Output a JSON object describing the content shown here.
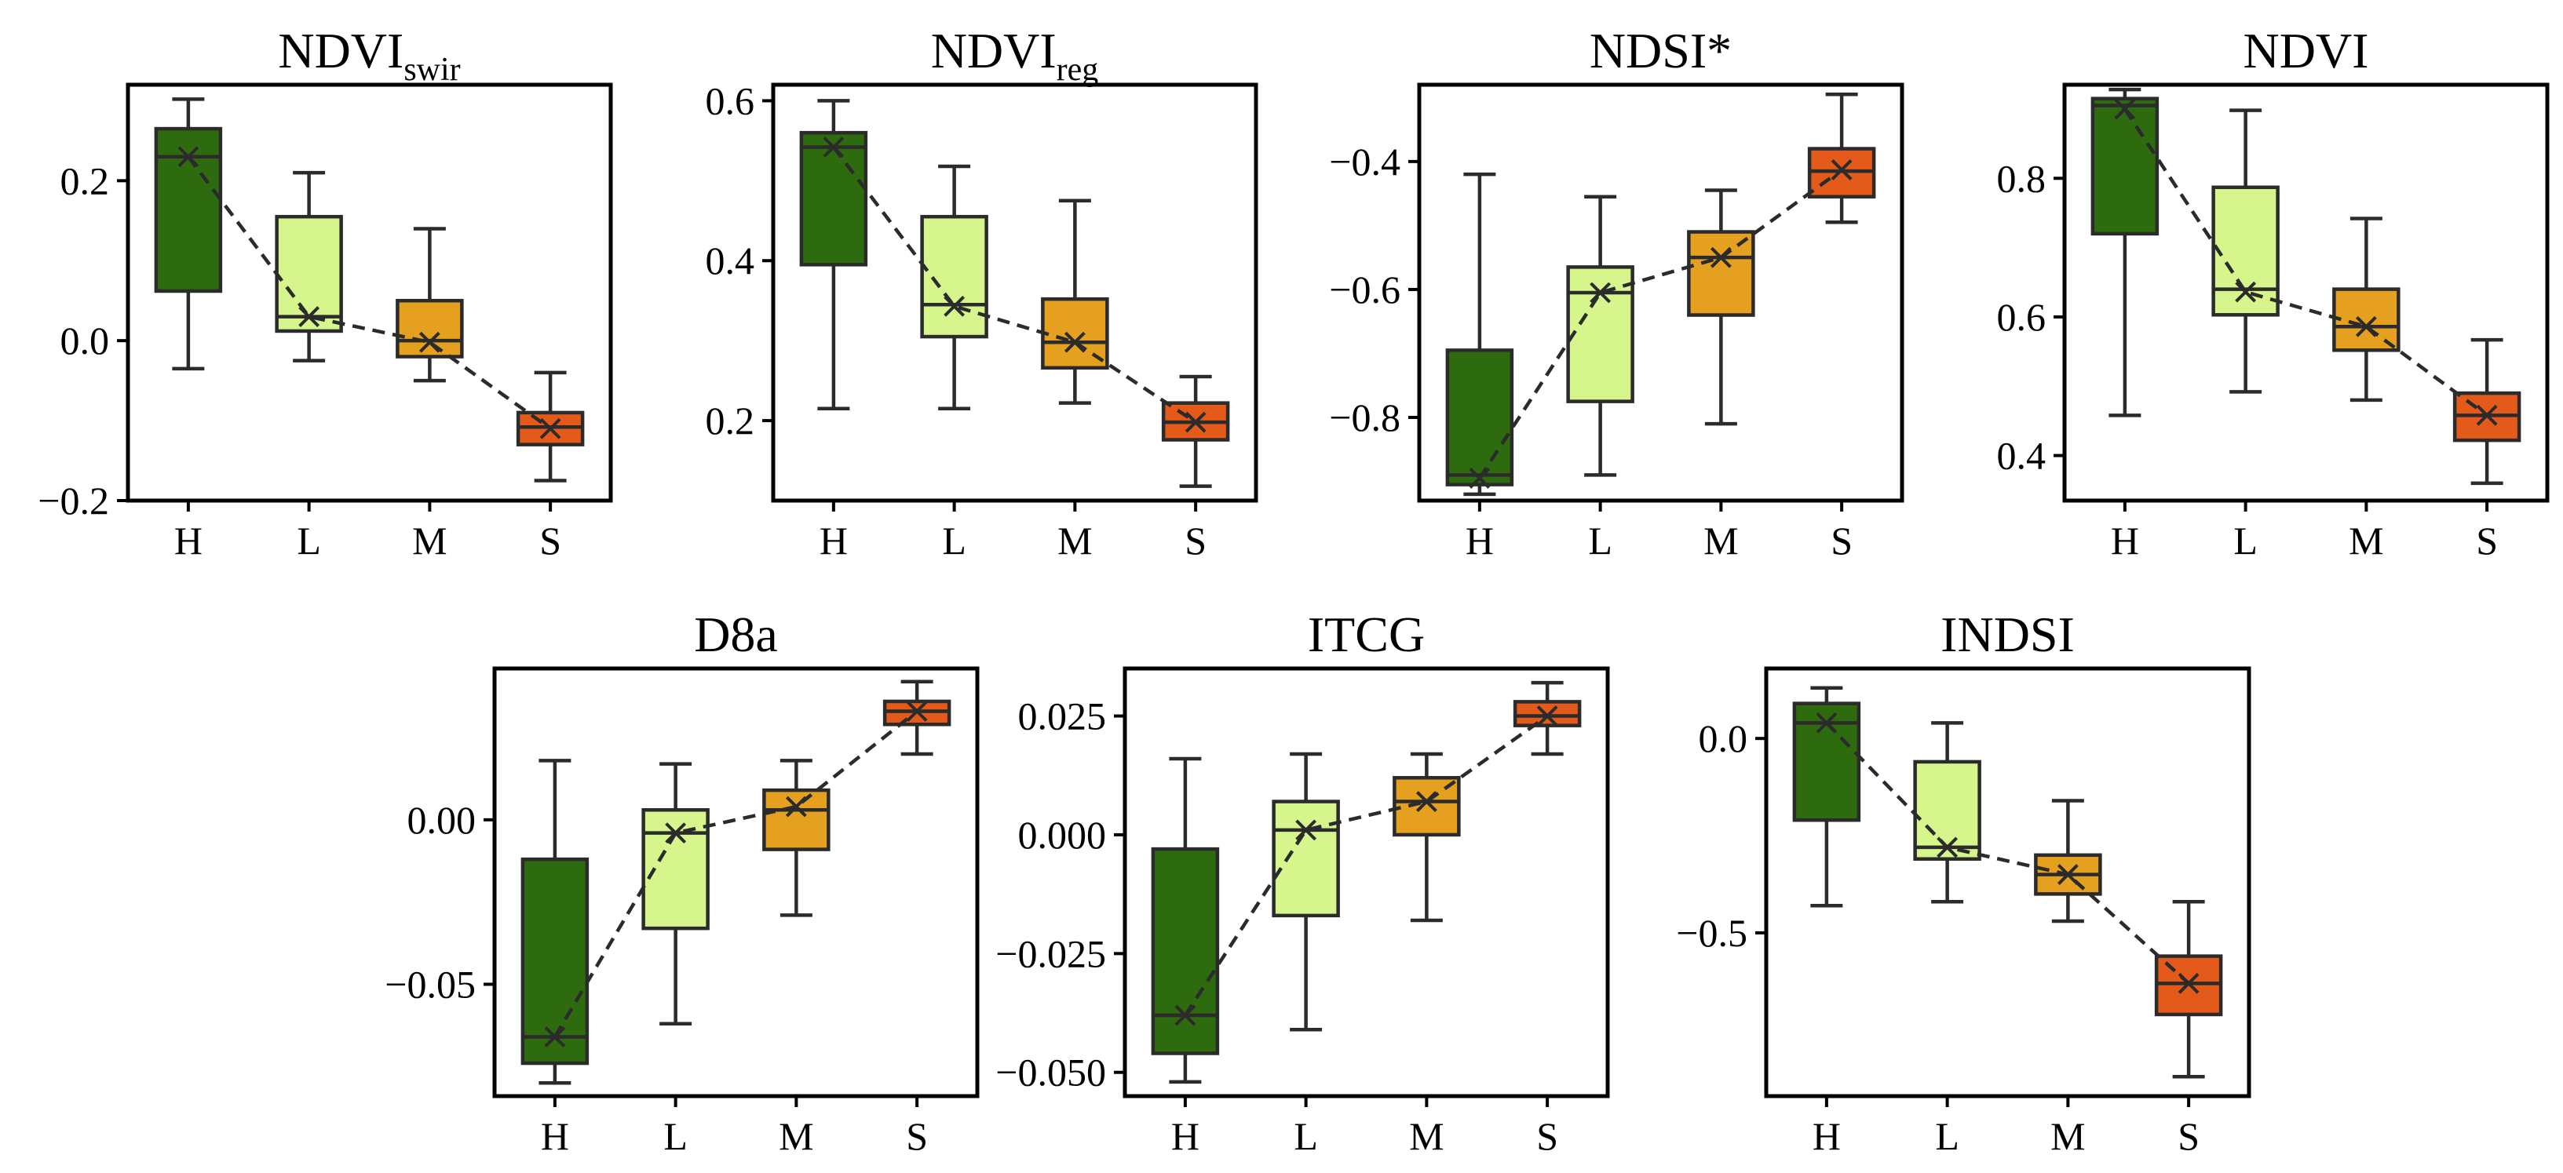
{
  "figure": {
    "categories": [
      "H",
      "L",
      "M",
      "S"
    ],
    "colors": {
      "H": "#2e6b0f",
      "L": "#d6f58c",
      "M": "#e5a01f",
      "S": "#e35a1a"
    }
  },
  "chart_data": [
    {
      "type": "box",
      "title": "NDVI",
      "title_sub": "swir",
      "categories": [
        "H",
        "L",
        "M",
        "S"
      ],
      "ylim": [
        -0.2,
        0.32
      ],
      "yticks": [
        -0.2,
        0.0,
        0.2
      ],
      "ytick_labels": [
        "−0.2",
        "0.0",
        "0.2"
      ],
      "boxes": [
        {
          "category": "H",
          "whislo": -0.035,
          "q1": 0.062,
          "med": 0.23,
          "q3": 0.265,
          "whishi": 0.302,
          "mean": 0.23
        },
        {
          "category": "L",
          "whislo": -0.025,
          "q1": 0.012,
          "med": 0.03,
          "q3": 0.155,
          "whishi": 0.21,
          "mean": 0.03
        },
        {
          "category": "M",
          "whislo": -0.05,
          "q1": -0.02,
          "med": 0.0,
          "q3": 0.05,
          "whishi": 0.14,
          "mean": -0.002
        },
        {
          "category": "S",
          "whislo": -0.175,
          "q1": -0.13,
          "med": -0.108,
          "q3": -0.09,
          "whishi": -0.04,
          "mean": -0.11
        }
      ]
    },
    {
      "type": "box",
      "title": "NDVI",
      "title_sub": "reg",
      "categories": [
        "H",
        "L",
        "M",
        "S"
      ],
      "ylim": [
        0.1,
        0.62
      ],
      "yticks": [
        0.2,
        0.4,
        0.6
      ],
      "ytick_labels": [
        "0.2",
        "0.4",
        "0.6"
      ],
      "boxes": [
        {
          "category": "H",
          "whislo": 0.215,
          "q1": 0.395,
          "med": 0.542,
          "q3": 0.56,
          "whishi": 0.6,
          "mean": 0.542
        },
        {
          "category": "L",
          "whislo": 0.215,
          "q1": 0.305,
          "med": 0.345,
          "q3": 0.455,
          "whishi": 0.518,
          "mean": 0.343
        },
        {
          "category": "M",
          "whislo": 0.222,
          "q1": 0.266,
          "med": 0.298,
          "q3": 0.352,
          "whishi": 0.475,
          "mean": 0.298
        },
        {
          "category": "S",
          "whislo": 0.118,
          "q1": 0.176,
          "med": 0.198,
          "q3": 0.222,
          "whishi": 0.255,
          "mean": 0.198
        }
      ]
    },
    {
      "type": "box",
      "title": "NDSI*",
      "title_sub": "",
      "categories": [
        "H",
        "L",
        "M",
        "S"
      ],
      "ylim": [
        -0.93,
        -0.28
      ],
      "yticks": [
        -0.8,
        -0.6,
        -0.4
      ],
      "ytick_labels": [
        "−0.8",
        "−0.6",
        "−0.4"
      ],
      "boxes": [
        {
          "category": "H",
          "whislo": -0.92,
          "q1": -0.905,
          "med": -0.89,
          "q3": -0.695,
          "whishi": -0.42,
          "mean": -0.895
        },
        {
          "category": "L",
          "whislo": -0.89,
          "q1": -0.775,
          "med": -0.605,
          "q3": -0.565,
          "whishi": -0.455,
          "mean": -0.605
        },
        {
          "category": "M",
          "whislo": -0.81,
          "q1": -0.64,
          "med": -0.55,
          "q3": -0.51,
          "whishi": -0.445,
          "mean": -0.55
        },
        {
          "category": "S",
          "whislo": -0.495,
          "q1": -0.455,
          "med": -0.415,
          "q3": -0.38,
          "whishi": -0.295,
          "mean": -0.413
        }
      ]
    },
    {
      "type": "box",
      "title": "NDVI",
      "title_sub": "",
      "categories": [
        "H",
        "L",
        "M",
        "S"
      ],
      "ylim": [
        0.335,
        0.935
      ],
      "yticks": [
        0.4,
        0.6,
        0.8
      ],
      "ytick_labels": [
        "0.4",
        "0.6",
        "0.8"
      ],
      "boxes": [
        {
          "category": "H",
          "whislo": 0.458,
          "q1": 0.72,
          "med": 0.905,
          "q3": 0.915,
          "whishi": 0.928,
          "mean": 0.9
        },
        {
          "category": "L",
          "whislo": 0.492,
          "q1": 0.603,
          "med": 0.64,
          "q3": 0.787,
          "whishi": 0.898,
          "mean": 0.636
        },
        {
          "category": "M",
          "whislo": 0.48,
          "q1": 0.552,
          "med": 0.586,
          "q3": 0.64,
          "whishi": 0.742,
          "mean": 0.586
        },
        {
          "category": "S",
          "whislo": 0.36,
          "q1": 0.422,
          "med": 0.458,
          "q3": 0.49,
          "whishi": 0.567,
          "mean": 0.458
        }
      ]
    },
    {
      "type": "box",
      "title": "D8a",
      "title_sub": "",
      "categories": [
        "H",
        "L",
        "M",
        "S"
      ],
      "ylim": [
        -0.084,
        0.046
      ],
      "yticks": [
        -0.05,
        0.0
      ],
      "ytick_labels": [
        "−0.05",
        "0.00"
      ],
      "boxes": [
        {
          "category": "H",
          "whislo": -0.08,
          "q1": -0.074,
          "med": -0.066,
          "q3": -0.012,
          "whishi": 0.018,
          "mean": -0.066
        },
        {
          "category": "L",
          "whislo": -0.062,
          "q1": -0.033,
          "med": -0.004,
          "q3": 0.003,
          "whishi": 0.017,
          "mean": -0.004
        },
        {
          "category": "M",
          "whislo": -0.029,
          "q1": -0.009,
          "med": 0.003,
          "q3": 0.009,
          "whishi": 0.018,
          "mean": 0.004
        },
        {
          "category": "S",
          "whislo": 0.02,
          "q1": 0.029,
          "med": 0.033,
          "q3": 0.036,
          "whishi": 0.042,
          "mean": 0.033
        }
      ]
    },
    {
      "type": "box",
      "title": "ITCG",
      "title_sub": "",
      "categories": [
        "H",
        "L",
        "M",
        "S"
      ],
      "ylim": [
        -0.055,
        0.035
      ],
      "yticks": [
        -0.05,
        -0.025,
        0.0,
        0.025
      ],
      "ytick_labels": [
        "−0.050",
        "−0.025",
        "0.000",
        "0.025"
      ],
      "boxes": [
        {
          "category": "H",
          "whislo": -0.052,
          "q1": -0.046,
          "med": -0.038,
          "q3": -0.003,
          "whishi": 0.016,
          "mean": -0.038
        },
        {
          "category": "L",
          "whislo": -0.041,
          "q1": -0.017,
          "med": 0.001,
          "q3": 0.007,
          "whishi": 0.017,
          "mean": 0.001
        },
        {
          "category": "M",
          "whislo": -0.018,
          "q1": 0.0,
          "med": 0.007,
          "q3": 0.012,
          "whishi": 0.017,
          "mean": 0.007
        },
        {
          "category": "S",
          "whislo": 0.017,
          "q1": 0.023,
          "med": 0.025,
          "q3": 0.028,
          "whishi": 0.032,
          "mean": 0.025
        }
      ]
    },
    {
      "type": "box",
      "title": "INDSI",
      "title_sub": "",
      "categories": [
        "H",
        "L",
        "M",
        "S"
      ],
      "ylim": [
        -0.92,
        0.18
      ],
      "yticks": [
        -0.5,
        0.0
      ],
      "ytick_labels": [
        "−0.5",
        "0.0"
      ],
      "boxes": [
        {
          "category": "H",
          "whislo": -0.43,
          "q1": -0.21,
          "med": 0.04,
          "q3": 0.09,
          "whishi": 0.13,
          "mean": 0.04
        },
        {
          "category": "L",
          "whislo": -0.42,
          "q1": -0.31,
          "med": -0.28,
          "q3": -0.06,
          "whishi": 0.04,
          "mean": -0.28
        },
        {
          "category": "M",
          "whislo": -0.47,
          "q1": -0.4,
          "med": -0.35,
          "q3": -0.3,
          "whishi": -0.16,
          "mean": -0.35
        },
        {
          "category": "S",
          "whislo": -0.87,
          "q1": -0.71,
          "med": -0.63,
          "q3": -0.56,
          "whishi": -0.42,
          "mean": -0.63
        }
      ]
    }
  ]
}
